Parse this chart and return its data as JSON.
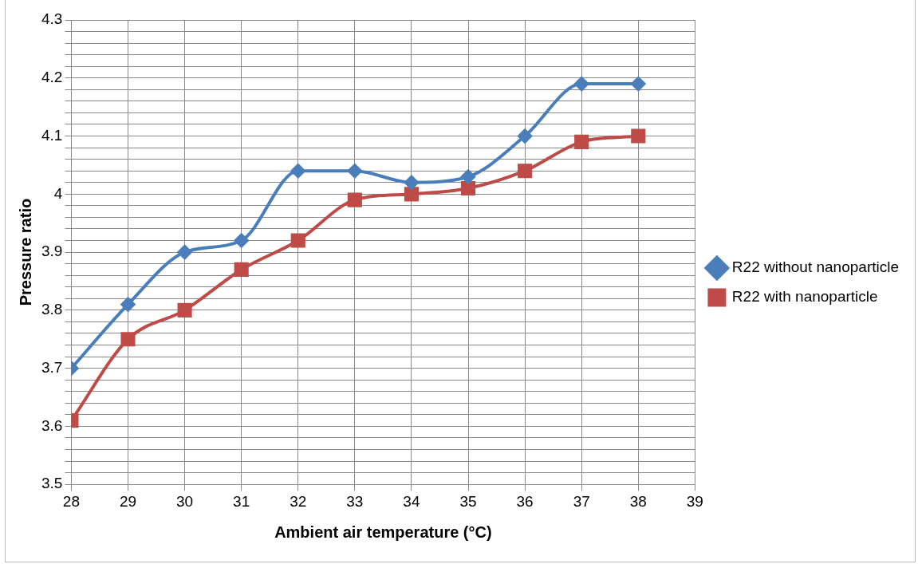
{
  "chart_data": {
    "type": "line",
    "xlabel": "Ambient air temperature (°C)",
    "ylabel": "Pressure ratio",
    "x": [
      28,
      29,
      30,
      31,
      32,
      33,
      34,
      35,
      36,
      37,
      38
    ],
    "xlim": [
      28,
      39
    ],
    "xticks": [
      28,
      29,
      30,
      31,
      32,
      33,
      34,
      35,
      36,
      37,
      38,
      39
    ],
    "ylim": [
      3.5,
      4.3
    ],
    "yticks": [
      3.5,
      {
        "value": 3.52,
        "label": null
      },
      {
        "value": 3.54,
        "label": null
      },
      {
        "value": 3.56,
        "label": null
      },
      {
        "value": 3.58,
        "label": null
      },
      3.6,
      {
        "value": 3.62,
        "label": null
      },
      {
        "value": 3.64,
        "label": null
      },
      {
        "value": 3.66,
        "label": null
      },
      {
        "value": 3.68,
        "label": null
      },
      3.7,
      {
        "value": 3.72,
        "label": null
      },
      {
        "value": 3.74,
        "label": null
      },
      {
        "value": 3.76,
        "label": null
      },
      {
        "value": 3.78,
        "label": null
      },
      3.8,
      {
        "value": 3.82,
        "label": null
      },
      {
        "value": 3.84,
        "label": null
      },
      {
        "value": 3.86,
        "label": null
      },
      {
        "value": 3.88,
        "label": null
      },
      3.9,
      {
        "value": 3.92,
        "label": null
      },
      {
        "value": 3.94,
        "label": null
      },
      {
        "value": 3.96,
        "label": null
      },
      {
        "value": 3.98,
        "label": null
      },
      {
        "value": 4,
        "label": "4"
      },
      {
        "value": 4.02,
        "label": null
      },
      {
        "value": 4.04,
        "label": null
      },
      {
        "value": 4.06,
        "label": null
      },
      {
        "value": 4.08,
        "label": null
      },
      4.1,
      {
        "value": 4.12,
        "label": null
      },
      {
        "value": 4.14,
        "label": null
      },
      {
        "value": 4.16,
        "label": null
      },
      {
        "value": 4.18,
        "label": null
      },
      4.2,
      {
        "value": 4.22,
        "label": null
      },
      {
        "value": 4.24,
        "label": null
      },
      {
        "value": 4.26,
        "label": null
      },
      {
        "value": 4.28,
        "label": null
      },
      4.3
    ],
    "grid": true,
    "legend": "right",
    "series": [
      {
        "name": "R22 without nanoparticle",
        "color": "#4a7ebb",
        "marker": "diamond",
        "values": [
          3.7,
          3.81,
          3.9,
          3.92,
          4.04,
          4.04,
          4.02,
          4.03,
          4.1,
          4.19,
          4.19
        ]
      },
      {
        "name": "R22 with nanoparticle",
        "color": "#be4b48",
        "marker": "square",
        "values": [
          3.61,
          3.75,
          3.8,
          3.87,
          3.92,
          3.99,
          4.0,
          4.01,
          4.04,
          4.09,
          4.1
        ]
      }
    ]
  }
}
